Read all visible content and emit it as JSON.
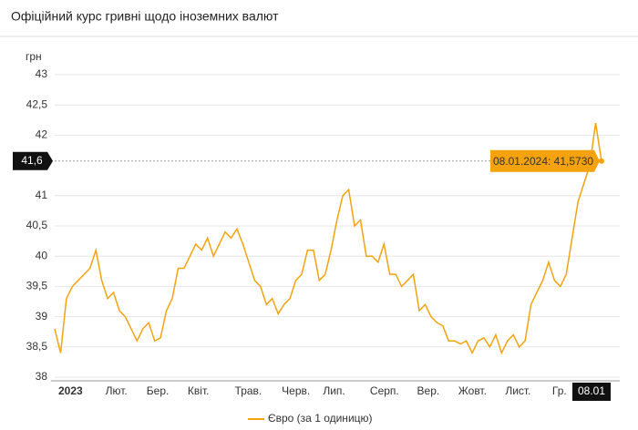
{
  "chart_data": {
    "type": "line",
    "title": "Офіційний курс гривні щодо іноземних валют",
    "y_label": "грн",
    "categories": [
      "2023",
      null,
      null,
      null,
      null,
      null,
      null,
      null,
      "Лют.",
      null,
      null,
      null,
      null,
      null,
      null,
      "Бер.",
      null,
      null,
      null,
      null,
      null,
      null,
      "Квіт.",
      null,
      null,
      null,
      null,
      null,
      null,
      null,
      "Трав.",
      null,
      null,
      null,
      null,
      null,
      null,
      null,
      "Черв.",
      null,
      null,
      null,
      null,
      null,
      null,
      "Лип.",
      null,
      null,
      null,
      null,
      null,
      null,
      null,
      "Серп.",
      null,
      null,
      null,
      null,
      null,
      null,
      null,
      "Вер.",
      null,
      null,
      null,
      null,
      null,
      null,
      "Жовт.",
      null,
      null,
      null,
      null,
      null,
      null,
      null,
      "Лист.",
      null,
      null,
      null,
      null,
      null,
      null,
      null,
      "Гр.",
      null,
      null,
      null,
      null,
      null,
      null,
      null,
      null,
      "08.01"
    ],
    "series": [
      {
        "name": "Євро (за 1 одиницю)",
        "color": "#f5a20f",
        "values": [
          38.8,
          38.4,
          39.3,
          39.5,
          39.6,
          39.7,
          39.8,
          40.1,
          39.6,
          39.3,
          39.4,
          39.1,
          39.0,
          38.8,
          38.6,
          38.8,
          38.9,
          38.6,
          38.65,
          39.1,
          39.3,
          39.8,
          39.8,
          40.0,
          40.2,
          40.1,
          40.3,
          40.0,
          40.2,
          40.4,
          40.3,
          40.45,
          40.2,
          39.9,
          39.6,
          39.5,
          39.2,
          39.3,
          39.05,
          39.2,
          39.3,
          39.6,
          39.7,
          40.1,
          40.1,
          39.6,
          39.7,
          40.1,
          40.6,
          41.0,
          41.1,
          40.5,
          40.6,
          40.0,
          40.0,
          39.9,
          40.2,
          39.7,
          39.7,
          39.5,
          39.6,
          39.7,
          39.1,
          39.2,
          39.0,
          38.9,
          38.85,
          38.6,
          38.6,
          38.55,
          38.6,
          38.4,
          38.6,
          38.65,
          38.5,
          38.7,
          38.4,
          38.6,
          38.7,
          38.5,
          38.6,
          39.2,
          39.4,
          39.6,
          39.9,
          39.6,
          39.5,
          39.7,
          40.3,
          40.9,
          41.2,
          41.5,
          42.2,
          41.573
        ]
      }
    ],
    "ylim": [
      38,
      43
    ],
    "yticks": [
      38,
      {
        "value": 38.5,
        "label": "38,5"
      },
      39,
      {
        "value": 39.5,
        "label": "39,5"
      },
      40,
      {
        "value": 40.5,
        "label": "40,5"
      },
      41,
      42,
      {
        "value": 42.5,
        "label": "42,5"
      },
      43
    ],
    "grid": true,
    "crosshair": {
      "value": 41.573,
      "label": "41,6",
      "tooltip": "08.01.2024: 41,5730"
    }
  }
}
